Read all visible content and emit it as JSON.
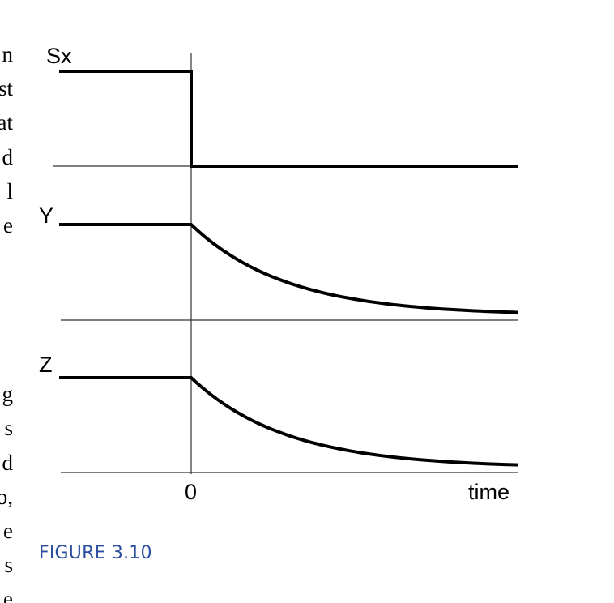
{
  "caption": "FIGURE 3.10",
  "margin_glyphs": [
    "n",
    "st",
    "at",
    "d",
    "l",
    "e",
    "g",
    "s",
    "d",
    "o,",
    "e",
    "s",
    "e"
  ],
  "chart_data": {
    "type": "line",
    "x_tick_labels": [
      "0"
    ],
    "xlabel": "time",
    "series": [
      {
        "name": "Sx",
        "shape": "step-down",
        "initial_level": 1,
        "final_level": 0
      },
      {
        "name": "Y",
        "shape": "exponential-decay",
        "initial_level": 1,
        "final_level": 0.08
      },
      {
        "name": "Z",
        "shape": "exponential-decay",
        "initial_level": 1,
        "final_level": 0.08
      }
    ],
    "grid": false
  }
}
